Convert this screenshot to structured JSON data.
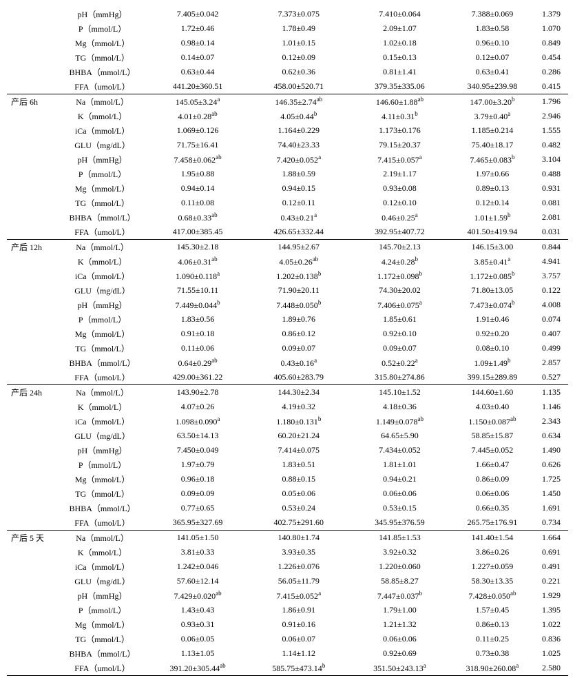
{
  "table": {
    "sections": [
      {
        "group": "",
        "rows": [
          {
            "param": "pH（mmHg）",
            "v": [
              "7.405±0.042",
              "7.373±0.075",
              "7.410±0.064",
              "7.388±0.069",
              "1.379"
            ],
            "sup": [
              "",
              "",
              "",
              "",
              ""
            ]
          },
          {
            "param": "P（mmol/L）",
            "v": [
              "1.72±0.46",
              "1.78±0.49",
              "2.09±1.07",
              "1.83±0.58",
              "1.070"
            ],
            "sup": [
              "",
              "",
              "",
              "",
              ""
            ]
          },
          {
            "param": "Mg（mmol/L）",
            "v": [
              "0.98±0.14",
              "1.01±0.15",
              "1.02±0.18",
              "0.96±0.10",
              "0.849"
            ],
            "sup": [
              "",
              "",
              "",
              "",
              ""
            ]
          },
          {
            "param": "TG（mmol/L）",
            "v": [
              "0.14±0.07",
              "0.12±0.09",
              "0.15±0.13",
              "0.12±0.07",
              "0.454"
            ],
            "sup": [
              "",
              "",
              "",
              "",
              ""
            ]
          },
          {
            "param": "BHBA（mmol/L）",
            "v": [
              "0.63±0.44",
              "0.62±0.36",
              "0.81±1.41",
              "0.63±0.41",
              "0.286"
            ],
            "sup": [
              "",
              "",
              "",
              "",
              ""
            ]
          },
          {
            "param": "FFA（umol/L）",
            "v": [
              "441.20±360.51",
              "458.00±520.71",
              "379.35±335.06",
              "340.95±239.98",
              "0.415"
            ],
            "sup": [
              "",
              "",
              "",
              "",
              ""
            ]
          }
        ]
      },
      {
        "group": "产后 6h",
        "rows": [
          {
            "param": "Na（mmol/L）",
            "v": [
              "145.05±3.24",
              "146.35±2.74",
              "146.60±1.88",
              "147.00±3.20",
              "1.796"
            ],
            "sup": [
              "a",
              "ab",
              "ab",
              "b",
              ""
            ]
          },
          {
            "param": "K（mmol/L）",
            "v": [
              "4.01±0.28",
              "4.05±0.44",
              "4.11±0.31",
              "3.79±0.40",
              "2.946"
            ],
            "sup": [
              "ab",
              "b",
              "b",
              "a",
              ""
            ]
          },
          {
            "param": "iCa（mmol/L）",
            "v": [
              "1.069±0.126",
              "1.164±0.229",
              "1.173±0.176",
              "1.185±0.214",
              "1.555"
            ],
            "sup": [
              "",
              "",
              "",
              "",
              ""
            ]
          },
          {
            "param": "GLU（mg/dL）",
            "v": [
              "71.75±16.41",
              "74.40±23.33",
              "79.15±20.37",
              "75.40±18.17",
              "0.482"
            ],
            "sup": [
              "",
              "",
              "",
              "",
              ""
            ]
          },
          {
            "param": "pH（mmHg）",
            "v": [
              "7.458±0.062",
              "7.420±0.052",
              "7.415±0.057",
              "7.465±0.083",
              "3.104"
            ],
            "sup": [
              "ab",
              "a",
              "a",
              "b",
              ""
            ]
          },
          {
            "param": "P（mmol/L）",
            "v": [
              "1.95±0.88",
              "1.88±0.59",
              "2.19±1.17",
              "1.97±0.66",
              "0.488"
            ],
            "sup": [
              "",
              "",
              "",
              "",
              ""
            ]
          },
          {
            "param": "Mg（mmol/L）",
            "v": [
              "0.94±0.14",
              "0.94±0.15",
              "0.93±0.08",
              "0.89±0.13",
              "0.931"
            ],
            "sup": [
              "",
              "",
              "",
              "",
              ""
            ]
          },
          {
            "param": "TG（mmol/L）",
            "v": [
              "0.11±0.08",
              "0.12±0.11",
              "0.12±0.10",
              "0.12±0.14",
              "0.081"
            ],
            "sup": [
              "",
              "",
              "",
              "",
              ""
            ]
          },
          {
            "param": "BHBA（mmol/L）",
            "v": [
              "0.68±0.33",
              "0.43±0.21",
              "0.46±0.25",
              "1.01±1.59",
              "2.081"
            ],
            "sup": [
              "ab",
              "a",
              "a",
              "b",
              ""
            ]
          },
          {
            "param": "FFA（umol/L）",
            "v": [
              "417.00±385.45",
              "426.65±332.44",
              "392.95±407.72",
              "401.50±419.94",
              "0.031"
            ],
            "sup": [
              "",
              "",
              "",
              "",
              ""
            ]
          }
        ]
      },
      {
        "group": "产后 12h",
        "rows": [
          {
            "param": "Na（mmol/L）",
            "v": [
              "145.30±2.18",
              "144.95±2.67",
              "145.70±2.13",
              "146.15±3.00",
              "0.844"
            ],
            "sup": [
              "",
              "",
              "",
              "",
              ""
            ]
          },
          {
            "param": "K（mmol/L）",
            "v": [
              "4.06±0.31",
              "4.05±0.26",
              "4.24±0.28",
              "3.85±0.41",
              "4.941"
            ],
            "sup": [
              "ab",
              "ab",
              "b",
              "a",
              ""
            ]
          },
          {
            "param": "iCa（mmol/L）",
            "v": [
              "1.090±0.118",
              "1.202±0.138",
              "1.172±0.098",
              "1.172±0.085",
              "3.757"
            ],
            "sup": [
              "a",
              "b",
              "b",
              "b",
              ""
            ]
          },
          {
            "param": "GLU（mg/dL）",
            "v": [
              "71.55±10.11",
              "71.90±20.11",
              "74.30±20.02",
              "71.80±13.05",
              "0.122"
            ],
            "sup": [
              "",
              "",
              "",
              "",
              ""
            ]
          },
          {
            "param": "pH（mmHg）",
            "v": [
              "7.449±0.044",
              "7.448±0.050",
              "7.406±0.075",
              "7.473±0.074",
              "4.008"
            ],
            "sup": [
              "b",
              "b",
              "a",
              "b",
              ""
            ]
          },
          {
            "param": "P（mmol/L）",
            "v": [
              "1.83±0.56",
              "1.89±0.76",
              "1.85±0.61",
              "1.91±0.46",
              "0.074"
            ],
            "sup": [
              "",
              "",
              "",
              "",
              ""
            ]
          },
          {
            "param": "Mg（mmol/L）",
            "v": [
              "0.91±0.18",
              "0.86±0.12",
              "0.92±0.10",
              "0.92±0.20",
              "0.407"
            ],
            "sup": [
              "",
              "",
              "",
              "",
              ""
            ]
          },
          {
            "param": "TG（mmol/L）",
            "v": [
              "0.11±0.06",
              "0.09±0.07",
              "0.09±0.07",
              "0.08±0.10",
              "0.499"
            ],
            "sup": [
              "",
              "",
              "",
              "",
              ""
            ]
          },
          {
            "param": "BHBA（mmol/L）",
            "v": [
              "0.64±0.29",
              "0.43±0.16",
              "0.52±0.22",
              "1.09±1.49",
              "2.857"
            ],
            "sup": [
              "ab",
              "a",
              "a",
              "b",
              ""
            ]
          },
          {
            "param": "FFA（umol/L）",
            "v": [
              "429.00±361.22",
              "405.60±283.79",
              "315.80±274.86",
              "399.15±289.89",
              "0.527"
            ],
            "sup": [
              "",
              "",
              "",
              "",
              ""
            ]
          }
        ]
      },
      {
        "group": "产后 24h",
        "rows": [
          {
            "param": "Na（mmol/L）",
            "v": [
              "143.90±2.78",
              "144.30±2.34",
              "145.10±1.52",
              "144.60±1.60",
              "1.135"
            ],
            "sup": [
              "",
              "",
              "",
              "",
              ""
            ]
          },
          {
            "param": "K（mmol/L）",
            "v": [
              "4.07±0.26",
              "4.19±0.32",
              "4.18±0.36",
              "4.03±0.40",
              "1.146"
            ],
            "sup": [
              "",
              "",
              "",
              "",
              ""
            ]
          },
          {
            "param": "iCa（mmol/L）",
            "v": [
              "1.098±0.090",
              "1.180±0.131",
              "1.149±0.078",
              "1.150±0.087",
              "2.343"
            ],
            "sup": [
              "a",
              "b",
              "ab",
              "ab",
              ""
            ]
          },
          {
            "param": "GLU（mg/dL）",
            "v": [
              "63.50±14.13",
              "60.20±21.24",
              "64.65±5.90",
              "58.85±15.87",
              "0.634"
            ],
            "sup": [
              "",
              "",
              "",
              "",
              ""
            ]
          },
          {
            "param": "pH（mmHg）",
            "v": [
              "7.450±0.049",
              "7.414±0.075",
              "7.434±0.052",
              "7.445±0.052",
              "1.490"
            ],
            "sup": [
              "",
              "",
              "",
              "",
              ""
            ]
          },
          {
            "param": "P（mmol/L）",
            "v": [
              "1.97±0.79",
              "1.83±0.51",
              "1.81±1.01",
              "1.66±0.47",
              "0.626"
            ],
            "sup": [
              "",
              "",
              "",
              "",
              ""
            ]
          },
          {
            "param": "Mg（mmol/L）",
            "v": [
              "0.96±0.18",
              "0.88±0.15",
              "0.94±0.21",
              "0.86±0.09",
              "1.725"
            ],
            "sup": [
              "",
              "",
              "",
              "",
              ""
            ]
          },
          {
            "param": "TG（mmol/L）",
            "v": [
              "0.09±0.09",
              "0.05±0.06",
              "0.06±0.06",
              "0.06±0.06",
              "1.450"
            ],
            "sup": [
              "",
              "",
              "",
              "",
              ""
            ]
          },
          {
            "param": "BHBA（mmol/L）",
            "v": [
              "0.77±0.65",
              "0.53±0.24",
              "0.53±0.15",
              "0.66±0.35",
              "1.691"
            ],
            "sup": [
              "",
              "",
              "",
              "",
              ""
            ]
          },
          {
            "param": "FFA（umol/L）",
            "v": [
              "365.95±327.69",
              "402.75±291.60",
              "345.95±376.59",
              "265.75±176.91",
              "0.734"
            ],
            "sup": [
              "",
              "",
              "",
              "",
              ""
            ]
          }
        ]
      },
      {
        "group": "产后 5 天",
        "rows": [
          {
            "param": "Na（mmol/L）",
            "v": [
              "141.05±1.50",
              "140.80±1.74",
              "141.85±1.53",
              "141.40±1.54",
              "1.664"
            ],
            "sup": [
              "",
              "",
              "",
              "",
              ""
            ]
          },
          {
            "param": "K（mmol/L）",
            "v": [
              "3.81±0.33",
              "3.93±0.35",
              "3.92±0.32",
              "3.86±0.26",
              "0.691"
            ],
            "sup": [
              "",
              "",
              "",
              "",
              ""
            ]
          },
          {
            "param": "iCa（mmol/L）",
            "v": [
              "1.242±0.046",
              "1.226±0.076",
              "1.220±0.060",
              "1.227±0.059",
              "0.491"
            ],
            "sup": [
              "",
              "",
              "",
              "",
              ""
            ]
          },
          {
            "param": "GLU（mg/dL）",
            "v": [
              "57.60±12.14",
              "56.05±11.79",
              "58.85±8.27",
              "58.30±13.35",
              "0.221"
            ],
            "sup": [
              "",
              "",
              "",
              "",
              ""
            ]
          },
          {
            "param": "pH（mmHg）",
            "v": [
              "7.429±0.020",
              "7.415±0.052",
              "7.447±0.037",
              "7.428±0.050",
              "1.929"
            ],
            "sup": [
              "ab",
              "a",
              "b",
              "ab",
              ""
            ]
          },
          {
            "param": "P（mmol/L）",
            "v": [
              "1.43±0.43",
              "1.86±0.91",
              "1.79±1.00",
              "1.57±0.45",
              "1.395"
            ],
            "sup": [
              "",
              "",
              "",
              "",
              ""
            ]
          },
          {
            "param": "Mg（mmol/L）",
            "v": [
              "0.93±0.31",
              "0.91±0.16",
              "1.21±1.32",
              "0.86±0.13",
              "1.022"
            ],
            "sup": [
              "",
              "",
              "",
              "",
              ""
            ]
          },
          {
            "param": "TG（mmol/L）",
            "v": [
              "0.06±0.05",
              "0.06±0.07",
              "0.06±0.06",
              "0.11±0.25",
              "0.836"
            ],
            "sup": [
              "",
              "",
              "",
              "",
              ""
            ]
          },
          {
            "param": "BHBA（mmol/L）",
            "v": [
              "1.13±1.05",
              "1.14±1.12",
              "0.92±0.69",
              "0.73±0.38",
              "1.025"
            ],
            "sup": [
              "",
              "",
              "",
              "",
              ""
            ]
          },
          {
            "param": "FFA（umol/L）",
            "v": [
              "391.20±305.44",
              "585.75±473.14",
              "351.50±243.13",
              "318.90±260.08",
              "2.580"
            ],
            "sup": [
              "ab",
              "b",
              "a",
              "a",
              ""
            ]
          }
        ]
      }
    ]
  }
}
